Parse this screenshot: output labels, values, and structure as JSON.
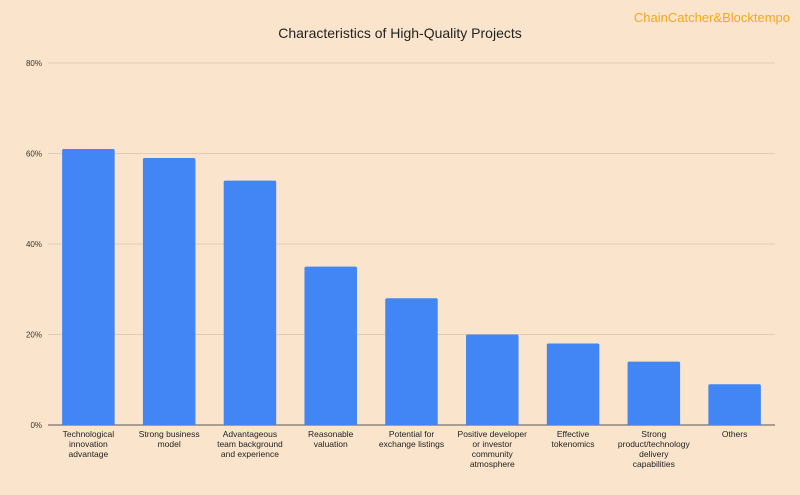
{
  "brand": "ChainCatcher&Blocktempo",
  "chart_data": {
    "type": "bar",
    "title": "Characteristics of High-Quality Projects",
    "xlabel": "",
    "ylabel": "",
    "y_tick_labels": [
      "0%",
      "20%",
      "40%",
      "60%",
      "80%"
    ],
    "ylim": [
      0,
      80
    ],
    "grid": true,
    "legend": "none",
    "bar_color": "#4285f4",
    "categories": [
      [
        "Technological",
        "innovation",
        "advantage"
      ],
      [
        "Strong business",
        "model"
      ],
      [
        "Advantageous",
        "team background",
        "and experience"
      ],
      [
        "Reasonable",
        "valuation"
      ],
      [
        "Potential for",
        "exchange listings"
      ],
      [
        "Positive developer",
        "or investor",
        "community",
        "atmosphere"
      ],
      [
        "Effective",
        "tokenomics"
      ],
      [
        "Strong",
        "product/technology",
        "delivery",
        "capabilities"
      ],
      [
        "Others"
      ]
    ],
    "values": [
      61,
      59,
      54,
      35,
      28,
      20,
      18,
      14,
      9
    ]
  }
}
